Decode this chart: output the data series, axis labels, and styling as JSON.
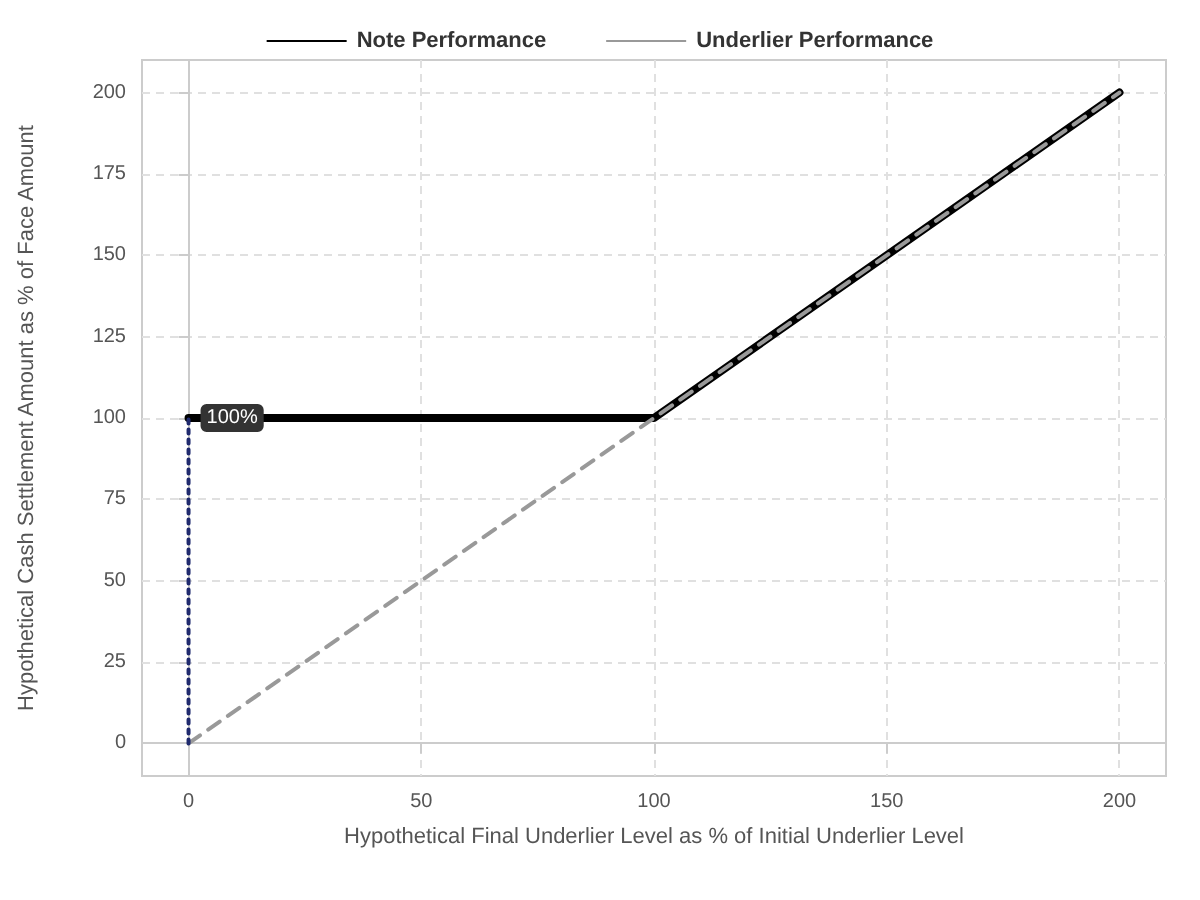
{
  "chart_data": {
    "type": "line",
    "xlabel": "Hypothetical Final Underlier Level as % of Initial Underlier Level",
    "ylabel": "Hypothetical Cash Settlement Amount as % of Face Amount",
    "series": [
      {
        "name": "Note Performance",
        "color": "#000000",
        "line_style": "solid",
        "x": [
          0,
          100,
          200
        ],
        "values": [
          100,
          100,
          200
        ]
      },
      {
        "name": "Underlier Performance",
        "color": "#999999",
        "line_style": "dashed",
        "x": [
          0,
          200
        ],
        "values": [
          0,
          200
        ]
      },
      {
        "color": "#1f2a6e",
        "line_style": "dotted",
        "x": [
          0,
          0
        ],
        "values": [
          0,
          100
        ]
      }
    ],
    "annotations": [
      {
        "text": "100%",
        "x": 0,
        "y": 100
      }
    ],
    "xlim": [
      -10,
      210
    ],
    "xticks": [
      0,
      50,
      100,
      150,
      200
    ],
    "ylim": [
      -10,
      210
    ],
    "yticks": [
      0,
      25,
      50,
      75,
      100,
      125,
      150,
      175,
      200
    ],
    "grid": true,
    "legend": "top",
    "marker": "none"
  }
}
